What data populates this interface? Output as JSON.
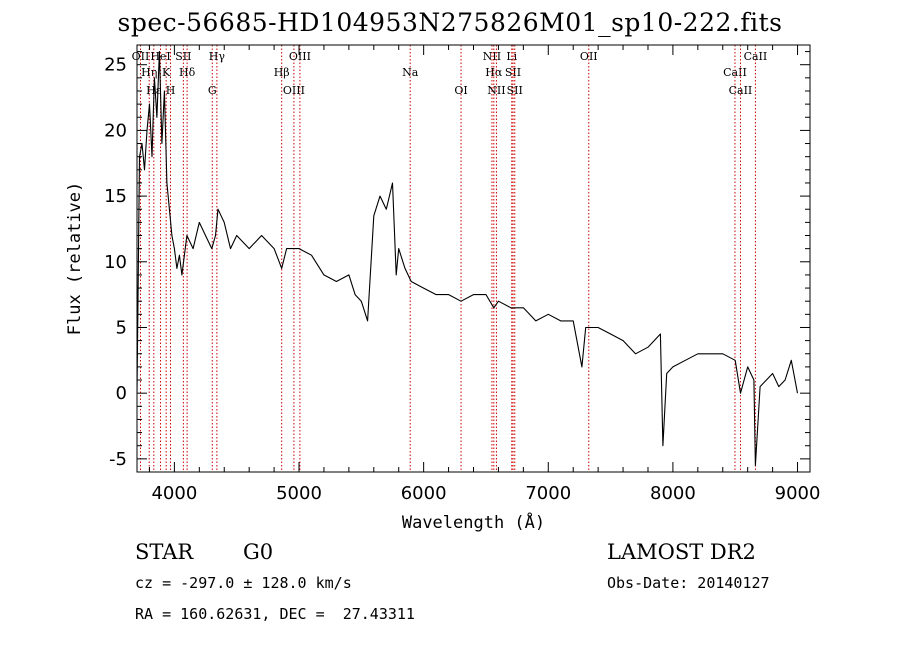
{
  "chart_data": {
    "type": "line",
    "title": "spec-56685-HD104953N275826M01_sp10-222.fits",
    "xlabel": "Wavelength (Å)",
    "ylabel": "Flux (relative)",
    "xlim": [
      3700,
      9100
    ],
    "ylim": [
      -6,
      26.5
    ],
    "xticks": [
      4000,
      5000,
      6000,
      7000,
      8000,
      9000
    ],
    "yticks": [
      -5,
      0,
      5,
      10,
      15,
      20,
      25
    ],
    "grid": false,
    "series": [
      {
        "color": "#000000",
        "x": [
          3700,
          3720,
          3740,
          3760,
          3780,
          3800,
          3820,
          3840,
          3860,
          3880,
          3900,
          3920,
          3940,
          3960,
          3980,
          4000,
          4020,
          4040,
          4060,
          4080,
          4100,
          4150,
          4200,
          4250,
          4300,
          4330,
          4350,
          4400,
          4450,
          4500,
          4600,
          4700,
          4800,
          4861,
          4900,
          5000,
          5100,
          5200,
          5300,
          5400,
          5450,
          5500,
          5550,
          5600,
          5650,
          5700,
          5750,
          5780,
          5800,
          5850,
          5900,
          6000,
          6100,
          6200,
          6300,
          6400,
          6500,
          6563,
          6600,
          6700,
          6800,
          6900,
          7000,
          7100,
          7200,
          7270,
          7300,
          7400,
          7500,
          7600,
          7700,
          7800,
          7900,
          7920,
          7950,
          8000,
          8100,
          8200,
          8300,
          8400,
          8500,
          8542,
          8600,
          8650,
          8662,
          8700,
          8750,
          8800,
          8850,
          8900,
          8950,
          9000
        ],
        "y": [
          0,
          18,
          19,
          17,
          20,
          22,
          18,
          24,
          21,
          26,
          19,
          23,
          16,
          14,
          12,
          11,
          9.5,
          10.5,
          9,
          10.5,
          12,
          11,
          13,
          12,
          11,
          12,
          14,
          13,
          11,
          12,
          11,
          12,
          11,
          9.5,
          11,
          11,
          10.5,
          9,
          8.5,
          9,
          7.5,
          7,
          5.5,
          13.5,
          15,
          14,
          16,
          9,
          11,
          9.5,
          8.5,
          8,
          7.5,
          7.5,
          7,
          7.5,
          7.5,
          6.5,
          7,
          6.5,
          6.5,
          5.5,
          6,
          5.5,
          5.5,
          2,
          5,
          5,
          4.5,
          4,
          3,
          3.5,
          4.5,
          -4,
          1.5,
          2,
          2.5,
          3,
          3,
          3,
          2.5,
          0,
          2,
          1,
          -5.5,
          0.5,
          1,
          1.5,
          0.5,
          1,
          2.5,
          0
        ]
      }
    ],
    "annotations": [
      {
        "x": 3728,
        "lines": [
          "OII"
        ]
      },
      {
        "x": 3798,
        "lines": [
          "Hη"
        ]
      },
      {
        "x": 3835,
        "lines": [
          "Hε"
        ]
      },
      {
        "x": 3889,
        "lines": [
          "HeI"
        ]
      },
      {
        "x": 3934,
        "lines": [
          "K"
        ]
      },
      {
        "x": 3969,
        "lines": [
          "H"
        ]
      },
      {
        "x": 4072,
        "lines": [
          "SII"
        ]
      },
      {
        "x": 4102,
        "lines": [
          "Hδ"
        ]
      },
      {
        "x": 4304,
        "lines": [
          "G"
        ]
      },
      {
        "x": 4341,
        "lines": [
          "Hγ"
        ]
      },
      {
        "x": 4861,
        "lines": [
          "Hβ"
        ]
      },
      {
        "x": 4959,
        "lines": [
          "OIII"
        ]
      },
      {
        "x": 5007,
        "lines": [
          "OIII"
        ]
      },
      {
        "x": 5892,
        "lines": [
          "Na"
        ]
      },
      {
        "x": 6300,
        "lines": [
          "OI"
        ]
      },
      {
        "x": 6548,
        "lines": [
          "NII"
        ]
      },
      {
        "x": 6563,
        "lines": [
          "Hα"
        ]
      },
      {
        "x": 6584,
        "lines": [
          "NII"
        ]
      },
      {
        "x": 6707,
        "lines": [
          "Li"
        ]
      },
      {
        "x": 6717,
        "lines": [
          "SII"
        ]
      },
      {
        "x": 6731,
        "lines": [
          "SII"
        ]
      },
      {
        "x": 7325,
        "lines": [
          "OII"
        ]
      },
      {
        "x": 8498,
        "lines": [
          "CaII"
        ]
      },
      {
        "x": 8542,
        "lines": [
          "CaII"
        ]
      },
      {
        "x": 8662,
        "lines": [
          "CaII"
        ]
      }
    ],
    "annotation_color": "#cc0000"
  },
  "info": {
    "class_label": "STAR",
    "subclass": "G0",
    "survey": "LAMOST DR2",
    "redshift": "cz = -297.0 ± 128.0 km/s",
    "obs_date": "Obs-Date: 20140127",
    "coords": "RA = 160.62631, DEC =  27.43311"
  }
}
